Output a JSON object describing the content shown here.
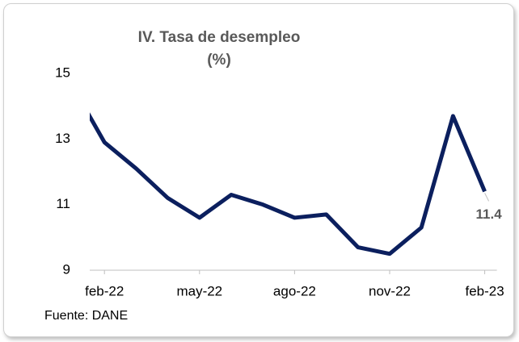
{
  "chart_data": {
    "type": "line",
    "title": "IV. Tasa de desempleo",
    "subtitle": "(%)",
    "categories": [
      null,
      "feb-22",
      null,
      null,
      "may-22",
      null,
      null,
      "ago-22",
      null,
      null,
      "nov-22",
      null,
      null,
      "feb-23"
    ],
    "series": [
      {
        "name": "Tasa de desempleo",
        "color": "#0b1f5e",
        "values": [
          14.6,
          12.9,
          12.1,
          11.2,
          10.6,
          11.3,
          11.0,
          10.6,
          10.7,
          9.7,
          9.5,
          10.3,
          13.7,
          11.4
        ]
      }
    ],
    "ylim": [
      9,
      15
    ],
    "yticks": [
      9,
      11,
      13,
      15
    ],
    "grid": false,
    "source": "Fuente: DANE"
  }
}
